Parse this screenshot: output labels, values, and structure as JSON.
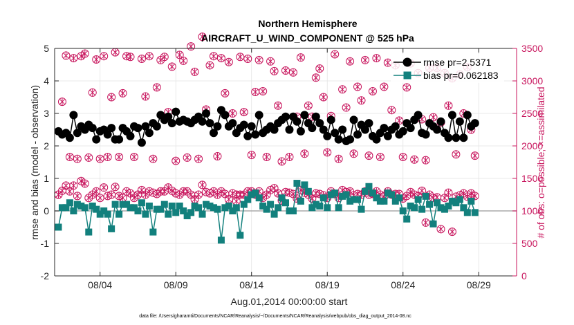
{
  "chart_data": {
    "type": "line",
    "title": "Northern Hemisphere",
    "subtitle": "AIRCRAFT_U_WIND_COMPONENT @ 525 hPa",
    "xlabel": "Aug.01,2014 00:00:00 start",
    "ylabel_left": "rmse and bias (model - observation)",
    "ylabel_right": "# of obs: o=possible; ×=assimilated",
    "footnote": "data file: /Users/gharamti/Documents/NCAR/Reanalysis/~/Documents/NCAR/Reanalysis/webpub/obs_diag_output_2014-08.nc",
    "xlim": [
      1,
      31.5
    ],
    "ylim_left": [
      -2,
      5
    ],
    "ylim_right": [
      0,
      3500
    ],
    "x_ticks": [
      4,
      9,
      14,
      19,
      24,
      29
    ],
    "x_tick_labels": [
      "08/04",
      "08/09",
      "08/14",
      "08/19",
      "08/24",
      "08/29"
    ],
    "y_left_ticks": [
      "-2",
      "-1",
      "0",
      "1",
      "2",
      "3",
      "4",
      "5"
    ],
    "y_right_ticks": [
      "0",
      "500",
      "1000",
      "1500",
      "2000",
      "2500",
      "3000",
      "3500"
    ],
    "grid": true,
    "legend_position": "top-right",
    "colors": {
      "rmse": "#000000",
      "bias": "#12807d",
      "obs": "#c8155d",
      "zero_line": "#aaaaaa"
    },
    "series": [
      {
        "name": "rmse pr=2.5371",
        "values": [
          2.45,
          2.35,
          2.4,
          2.25,
          2.95,
          2.4,
          2.6,
          2.5,
          2.65,
          2.55,
          2.2,
          2.45,
          2.5,
          2.35,
          2.55,
          2.2,
          2.2,
          2.55,
          2.45,
          2.3,
          2.6,
          2.55,
          2.1,
          2.6,
          2.4,
          2.7,
          2.6,
          2.95,
          2.8,
          2.9,
          2.7,
          3.05,
          2.75,
          2.8,
          2.75,
          2.7,
          2.8,
          2.9,
          2.75,
          3.0,
          2.7,
          2.4,
          2.6,
          3.1,
          2.95,
          2.6,
          2.7,
          2.4,
          2.55,
          2.65,
          2.3,
          2.6,
          2.35,
          2.95,
          2.4,
          2.5,
          2.6,
          2.5,
          2.7,
          2.8,
          2.9,
          2.5,
          2.9,
          2.75,
          2.45,
          2.95,
          2.7,
          2.55,
          2.9,
          2.7,
          2.5,
          2.3,
          2.8,
          2.4,
          2.2,
          2.5,
          2.15,
          2.2,
          2.8,
          2.35,
          2.65,
          2.5,
          2.7,
          2.3,
          2.2,
          2.4,
          2.55,
          2.3,
          2.5,
          2.6,
          2.35,
          2.45,
          2.7,
          2.55,
          2.8,
          2.95,
          2.4,
          2.35,
          2.7,
          2.6,
          2.5,
          2.75,
          2.4,
          2.25,
          2.95,
          2.25,
          2.75,
          2.25,
          2.95,
          2.6,
          2.7
        ]
      },
      {
        "name": "bias pr=0.062183",
        "values": [
          -0.5,
          0.1,
          0.1,
          0.25,
          0.0,
          0.2,
          0.15,
          0.1,
          -0.65,
          0.15,
          0.05,
          -0.1,
          0.0,
          -0.1,
          -0.55,
          0.2,
          -0.1,
          0.2,
          0.2,
          0.1,
          0.1,
          0.0,
          0.25,
          -0.1,
          0.15,
          -0.65,
          0.05,
          0.05,
          0.2,
          -0.1,
          0.15,
          -0.05,
          0.15,
          0.0,
          -0.15,
          -0.05,
          0.15,
          0.1,
          -0.1,
          0.2,
          0.15,
          0.1,
          0.05,
          -0.9,
          0.1,
          0.15,
          0.0,
          0.1,
          -0.75,
          0.2,
          0.35,
          0.5,
          0.55,
          0.4,
          0.15,
          0.05,
          0.2,
          -0.1,
          0.1,
          0.4,
          0.25,
          0.0,
          0.0,
          0.85,
          0.3,
          0.8,
          0.6,
          0.1,
          0.2,
          0.15,
          0.4,
          0.1,
          0.5,
          0.55,
          0.1,
          0.45,
          0.5,
          0.3,
          0.35,
          0.35,
          0.05,
          0.6,
          0.75,
          0.55,
          0.4,
          0.3,
          0.3,
          0.55,
          0.5,
          0.3,
          0.4,
          0.0,
          -0.25,
          0.15,
          0.1,
          0.35,
          0.05,
          0.45,
          0.2,
          -0.4,
          0.25,
          0.1,
          0.05,
          0.15,
          0.3,
          0.25,
          0.35,
          0.1,
          -0.05,
          0.3,
          -0.05
        ]
      },
      {
        "name": "# obs possible",
        "values": [
          1250,
          2680,
          3390,
          1830,
          3350,
          1800,
          3380,
          3420,
          1820,
          2820,
          3330,
          1800,
          3380,
          1830,
          2750,
          3440,
          1830,
          2810,
          3380,
          3370,
          1830,
          1250,
          3340,
          2760,
          3380,
          1800,
          2900,
          3320,
          3370,
          2520,
          3220,
          1770,
          3400,
          3310,
          1820,
          3530,
          3140,
          1800,
          3680,
          2560,
          3240,
          3380,
          1840,
          3350,
          2810,
          3290,
          2500,
          1250,
          3370,
          2520,
          3340,
          1860,
          2830,
          3320,
          2840,
          1830,
          3300,
          3150,
          2620,
          1760,
          3160,
          1830,
          3130,
          2450,
          3360,
          1880,
          2620,
          2450,
          3050,
          3190,
          2750,
          1900,
          2460,
          3410,
          1800,
          2870,
          2590,
          3300,
          1880,
          2910,
          2700,
          3320,
          1850,
          2840,
          3350,
          1830,
          2910,
          3280,
          2550,
          3240,
          2390,
          1830,
          2900,
          3270,
          1790,
          3120,
          2410,
          1780,
          3200,
          2440,
          3200,
          2360,
          3120,
          2620,
          3040,
          1870,
          3100,
          2500,
          3210,
          2250,
          1850
        ]
      },
      {
        "name": "# obs assimilated",
        "values": [
          1250,
          1310,
          1390,
          1300,
          1390,
          1230,
          1460,
          1420,
          1200,
          1250,
          1300,
          1200,
          1360,
          1230,
          1250,
          1370,
          1230,
          1200,
          1300,
          1270,
          1200,
          1250,
          1320,
          1250,
          1300,
          1280,
          1260,
          1300,
          1300,
          1360,
          1310,
          1270,
          1250,
          1300,
          1300,
          1250,
          1180,
          1250,
          1400,
          1290,
          1270,
          1300,
          1250,
          1300,
          1260,
          1180,
          1270,
          1150,
          1250,
          1250,
          1300,
          1300,
          1250,
          1300,
          1200,
          1250,
          1320,
          1350,
          1270,
          1160,
          1290,
          1280,
          1260,
          1190,
          1320,
          1280,
          1250,
          1190,
          1270,
          1260,
          1240,
          1200,
          1300,
          1260,
          1200,
          1320,
          1290,
          1300,
          1240,
          1260,
          1250,
          1300,
          1250,
          1260,
          1300,
          1250,
          1220,
          1300,
          1250,
          1260,
          1260,
          1190,
          1230,
          1290,
          1250,
          1230,
          1310,
          820,
          1250,
          1200,
          1210,
          720,
          1200,
          1280,
          680,
          1220,
          1240,
          1270,
          1220,
          1270,
          1230
        ]
      }
    ]
  }
}
